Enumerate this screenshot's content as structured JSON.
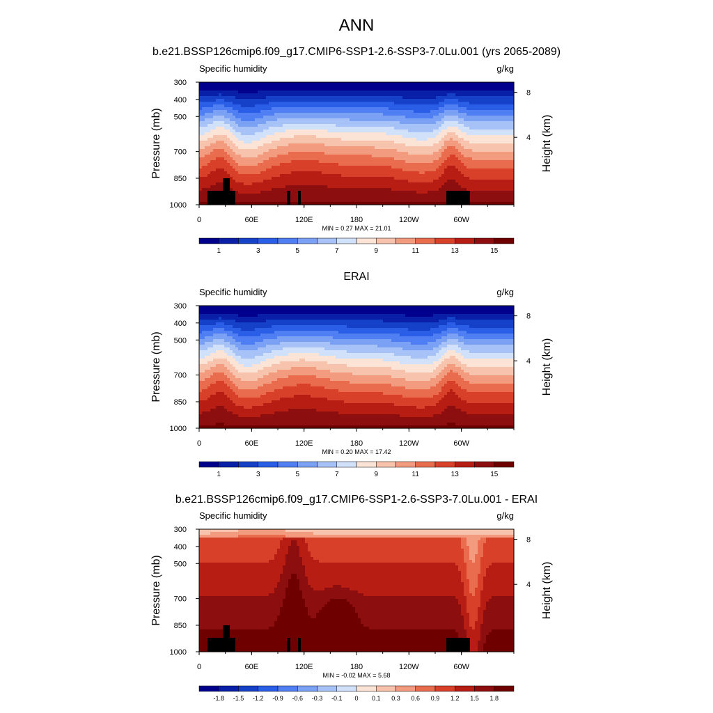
{
  "figure": {
    "title": "ANN"
  },
  "chart_data": [
    {
      "type": "heatmap",
      "panel_title": "b.e21.BSSP126cmip6.f09_g17.CMIP6-SSP1-2.6-SSP3-7.0Lu.001 (yrs 2065-2089)",
      "left_label": "Specific humidity",
      "right_label": "g/kg",
      "ylabel": "Pressure (mb)",
      "ylabel_right": "Height (km)",
      "x_ticks": [
        "0",
        "60E",
        "120E",
        "180",
        "120W",
        "60W"
      ],
      "y_ticks": [
        "300",
        "400",
        "500",
        "700",
        "850",
        "1000"
      ],
      "y_right_ticks": [
        "8",
        "4"
      ],
      "stats": "MIN =   0.27  MAX =  21.01",
      "colorbar_labels": [
        "1",
        "3",
        "5",
        "7",
        "9",
        "11",
        "13",
        "15"
      ],
      "levels": [
        1,
        2,
        3,
        4,
        5,
        6,
        7,
        8,
        9,
        10,
        11,
        12,
        13,
        14,
        15
      ],
      "min": 0.27,
      "max": 21.01,
      "ylim": [
        1000,
        300
      ],
      "xlim": [
        0,
        360
      ]
    },
    {
      "type": "heatmap",
      "panel_title": "ERAI",
      "left_label": "Specific humidity",
      "right_label": "g/kg",
      "ylabel": "Pressure (mb)",
      "ylabel_right": "Height (km)",
      "x_ticks": [
        "0",
        "60E",
        "120E",
        "180",
        "120W",
        "60W"
      ],
      "y_ticks": [
        "300",
        "400",
        "500",
        "700",
        "850",
        "1000"
      ],
      "y_right_ticks": [
        "8",
        "4"
      ],
      "stats": "MIN =   0.20  MAX =  17.42",
      "colorbar_labels": [
        "1",
        "3",
        "5",
        "7",
        "9",
        "11",
        "13",
        "15"
      ],
      "levels": [
        1,
        2,
        3,
        4,
        5,
        6,
        7,
        8,
        9,
        10,
        11,
        12,
        13,
        14,
        15
      ],
      "min": 0.2,
      "max": 17.42,
      "ylim": [
        1000,
        300
      ],
      "xlim": [
        0,
        360
      ]
    },
    {
      "type": "heatmap",
      "panel_title": "b.e21.BSSP126cmip6.f09_g17.CMIP6-SSP1-2.6-SSP3-7.0Lu.001 - ERAI",
      "left_label": "Specific humidity",
      "right_label": "g/kg",
      "ylabel": "Pressure (mb)",
      "ylabel_right": "Height (km)",
      "x_ticks": [
        "0",
        "60E",
        "120E",
        "180",
        "120W",
        "60W"
      ],
      "y_ticks": [
        "300",
        "400",
        "500",
        "700",
        "850",
        "1000"
      ],
      "y_right_ticks": [
        "8",
        "4"
      ],
      "stats": "MIN =  -0.02  MAX =   5.68",
      "colorbar_labels": [
        "-1.8",
        "-1.5",
        "-1.2",
        "-0.9",
        "-0.6",
        "-0.3",
        "-0.1",
        "0",
        "0.1",
        "0.3",
        "0.6",
        "0.9",
        "1.2",
        "1.5",
        "1.8"
      ],
      "levels": [
        -1.8,
        -1.5,
        -1.2,
        -0.9,
        -0.6,
        -0.3,
        -0.1,
        0,
        0.1,
        0.3,
        0.6,
        0.9,
        1.2,
        1.5,
        1.8
      ],
      "min": -0.02,
      "max": 5.68,
      "ylim": [
        1000,
        300
      ],
      "xlim": [
        0,
        360
      ]
    }
  ],
  "colors": {
    "palette": [
      "#00008c",
      "#0a1fa8",
      "#1540c8",
      "#2a5ee6",
      "#4f7ff2",
      "#7ba1f4",
      "#a6c2f6",
      "#d2e1fa",
      "#fbe3d6",
      "#f8c3ac",
      "#f29b7f",
      "#ea6c4e",
      "#d9402a",
      "#b81d14",
      "#8d0e0e",
      "#6f0000"
    ],
    "topography": "#000000"
  }
}
